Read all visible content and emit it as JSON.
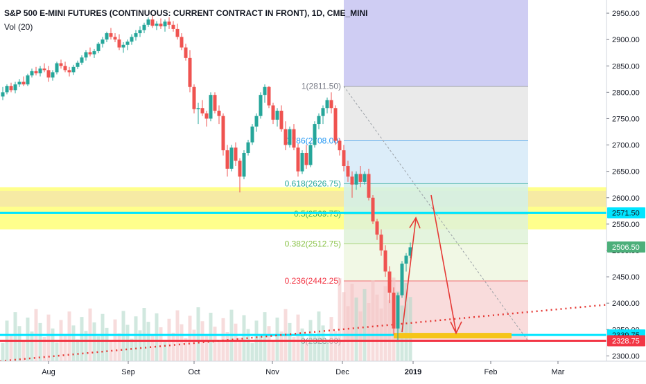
{
  "header": {
    "title": "S&P 500 E-MINI FUTURES (CONTINUOUS: CURRENT CONTRACT IN FRONT), 1D, CME_MINI",
    "indicator": "Vol (20)"
  },
  "chart_data": {
    "type": "candlestick",
    "yaxis": {
      "ticks": [
        "2950.00",
        "2900.00",
        "2850.00",
        "2800.00",
        "2750.00",
        "2700.00",
        "2650.00",
        "2600.00",
        "2550.00",
        "2500.00",
        "2450.00",
        "2400.00",
        "2350.00",
        "2300.00"
      ],
      "range": [
        2290,
        2975
      ]
    },
    "xaxis": {
      "ticks": [
        "Aug",
        "Sep",
        "Oct",
        "Nov",
        "Dec",
        "2019",
        "Feb",
        "Mar"
      ]
    },
    "price_tags": [
      {
        "label": "2571.50",
        "value": 2571.5,
        "bg": "#00e5ff",
        "fg": "#131722"
      },
      {
        "label": "2506.50",
        "value": 2506.5,
        "bg": "#4caf7a",
        "fg": "#ffffff"
      },
      {
        "label": "2339.75",
        "value": 2339.75,
        "bg": "#00e5ff",
        "fg": "#131722"
      },
      {
        "label": "2328.75",
        "value": 2328.75,
        "bg": "#f23645",
        "fg": "#ffffff"
      }
    ],
    "fib_levels": [
      {
        "ratio": "1",
        "price": 2811.5,
        "label": "1(2811.50)",
        "color": "#787b86",
        "fill": "#e6e6e6"
      },
      {
        "ratio": "0.786",
        "price": 2708.0,
        "label": "0.786(2708.00)",
        "color": "#2196f3",
        "fill": "#d6eaf8"
      },
      {
        "ratio": "0.618",
        "price": 2626.75,
        "label": "0.618(2626.75)",
        "color": "#26a69a",
        "fill": "#d2f0ea"
      },
      {
        "ratio": "0.5",
        "price": 2569.75,
        "label": "0.5(2569.75)",
        "color": "#4caf50",
        "fill": "#dff2d8"
      },
      {
        "ratio": "0.382",
        "price": 2512.75,
        "label": "0.382(2512.75)",
        "color": "#8bc34a",
        "fill": "#eef7e0"
      },
      {
        "ratio": "0.236",
        "price": 2442.25,
        "label": "0.236(2442.25)",
        "color": "#f23645",
        "fill": "#f8d6d6"
      },
      {
        "ratio": "0",
        "price": 2328.0,
        "label": "0(2328.00)",
        "color": "#787b86",
        "fill": "#eeeeee"
      }
    ],
    "horizontal_lines": [
      {
        "price": 2571.5,
        "color": "#00e5ff"
      },
      {
        "price": 2339.75,
        "color": "#00e5ff"
      },
      {
        "price": 2328.75,
        "color": "#f23645"
      }
    ],
    "zones": [
      {
        "from": 2540,
        "to": 2620,
        "color": "#ffff66"
      },
      {
        "from": 2583,
        "to": 2613,
        "color": "#f5e6a8"
      }
    ],
    "candles": [
      [
        2792,
        2810,
        2785,
        2800
      ],
      [
        2800,
        2815,
        2796,
        2812
      ],
      [
        2812,
        2818,
        2800,
        2804
      ],
      [
        2804,
        2820,
        2798,
        2815
      ],
      [
        2815,
        2825,
        2810,
        2820
      ],
      [
        2820,
        2830,
        2812,
        2815
      ],
      [
        2815,
        2835,
        2812,
        2832
      ],
      [
        2832,
        2845,
        2828,
        2840
      ],
      [
        2840,
        2848,
        2832,
        2836
      ],
      [
        2836,
        2850,
        2830,
        2845
      ],
      [
        2845,
        2855,
        2838,
        2842
      ],
      [
        2842,
        2850,
        2820,
        2828
      ],
      [
        2828,
        2842,
        2822,
        2838
      ],
      [
        2838,
        2858,
        2834,
        2855
      ],
      [
        2855,
        2862,
        2845,
        2850
      ],
      [
        2850,
        2858,
        2838,
        2842
      ],
      [
        2842,
        2848,
        2830,
        2838
      ],
      [
        2838,
        2852,
        2833,
        2848
      ],
      [
        2848,
        2860,
        2844,
        2856
      ],
      [
        2856,
        2870,
        2852,
        2866
      ],
      [
        2866,
        2880,
        2860,
        2876
      ],
      [
        2876,
        2885,
        2868,
        2872
      ],
      [
        2872,
        2882,
        2865,
        2878
      ],
      [
        2878,
        2895,
        2874,
        2892
      ],
      [
        2892,
        2905,
        2885,
        2900
      ],
      [
        2900,
        2915,
        2895,
        2912
      ],
      [
        2912,
        2922,
        2900,
        2905
      ],
      [
        2905,
        2912,
        2895,
        2900
      ],
      [
        2900,
        2910,
        2880,
        2885
      ],
      [
        2885,
        2895,
        2875,
        2890
      ],
      [
        2890,
        2900,
        2880,
        2896
      ],
      [
        2896,
        2910,
        2890,
        2905
      ],
      [
        2905,
        2918,
        2898,
        2912
      ],
      [
        2912,
        2925,
        2905,
        2918
      ],
      [
        2918,
        2932,
        2912,
        2928
      ],
      [
        2928,
        2942,
        2924,
        2938
      ],
      [
        2938,
        2945,
        2922,
        2926
      ],
      [
        2926,
        2935,
        2918,
        2930
      ],
      [
        2930,
        2940,
        2920,
        2925
      ],
      [
        2925,
        2938,
        2915,
        2934
      ],
      [
        2934,
        2942,
        2920,
        2928
      ],
      [
        2928,
        2935,
        2915,
        2920
      ],
      [
        2920,
        2930,
        2900,
        2905
      ],
      [
        2905,
        2912,
        2880,
        2885
      ],
      [
        2885,
        2892,
        2860,
        2865
      ],
      [
        2865,
        2880,
        2800,
        2810
      ],
      [
        2810,
        2815,
        2760,
        2768
      ],
      [
        2768,
        2780,
        2740,
        2770
      ],
      [
        2770,
        2785,
        2755,
        2760
      ],
      [
        2760,
        2765,
        2735,
        2750
      ],
      [
        2750,
        2800,
        2745,
        2795
      ],
      [
        2795,
        2800,
        2760,
        2765
      ],
      [
        2765,
        2775,
        2740,
        2755
      ],
      [
        2755,
        2760,
        2680,
        2690
      ],
      [
        2690,
        2700,
        2640,
        2655
      ],
      [
        2655,
        2700,
        2650,
        2695
      ],
      [
        2695,
        2705,
        2660,
        2670
      ],
      [
        2670,
        2675,
        2610,
        2640
      ],
      [
        2640,
        2690,
        2635,
        2685
      ],
      [
        2685,
        2710,
        2680,
        2705
      ],
      [
        2705,
        2740,
        2700,
        2735
      ],
      [
        2735,
        2760,
        2725,
        2755
      ],
      [
        2755,
        2800,
        2750,
        2795
      ],
      [
        2795,
        2815,
        2780,
        2810
      ],
      [
        2810,
        2812,
        2770,
        2775
      ],
      [
        2775,
        2780,
        2740,
        2748
      ],
      [
        2748,
        2770,
        2735,
        2765
      ],
      [
        2765,
        2775,
        2725,
        2730
      ],
      [
        2730,
        2745,
        2690,
        2700
      ],
      [
        2700,
        2735,
        2695,
        2730
      ],
      [
        2730,
        2740,
        2690,
        2695
      ],
      [
        2695,
        2702,
        2640,
        2650
      ],
      [
        2650,
        2690,
        2645,
        2685
      ],
      [
        2685,
        2700,
        2655,
        2662
      ],
      [
        2662,
        2705,
        2658,
        2700
      ],
      [
        2700,
        2745,
        2695,
        2740
      ],
      [
        2740,
        2760,
        2730,
        2755
      ],
      [
        2755,
        2775,
        2740,
        2770
      ],
      [
        2770,
        2790,
        2760,
        2785
      ],
      [
        2785,
        2800,
        2760,
        2770
      ],
      [
        2770,
        2775,
        2700,
        2708
      ],
      [
        2708,
        2712,
        2680,
        2690
      ],
      [
        2690,
        2700,
        2650,
        2660
      ],
      [
        2660,
        2670,
        2630,
        2640
      ],
      [
        2640,
        2650,
        2600,
        2625
      ],
      [
        2625,
        2650,
        2615,
        2645
      ],
      [
        2645,
        2660,
        2620,
        2630
      ],
      [
        2630,
        2650,
        2625,
        2645
      ],
      [
        2645,
        2655,
        2595,
        2600
      ],
      [
        2600,
        2605,
        2550,
        2555
      ],
      [
        2555,
        2560,
        2520,
        2530
      ],
      [
        2530,
        2540,
        2490,
        2500
      ],
      [
        2500,
        2510,
        2450,
        2460
      ],
      [
        2460,
        2470,
        2400,
        2420
      ],
      [
        2420,
        2430,
        2340,
        2352
      ],
      [
        2352,
        2420,
        2330,
        2415
      ],
      [
        2415,
        2480,
        2410,
        2475
      ],
      [
        2475,
        2495,
        2460,
        2490
      ],
      [
        2490,
        2515,
        2485,
        2506
      ]
    ],
    "volume_range": [
      0,
      160
    ]
  }
}
